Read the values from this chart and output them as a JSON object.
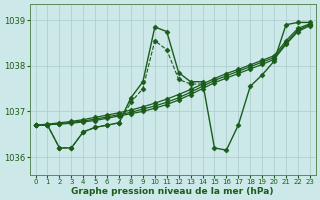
{
  "xlabel": "Graphe pression niveau de la mer (hPa)",
  "xlim": [
    -0.5,
    23.5
  ],
  "ylim": [
    1035.6,
    1039.35
  ],
  "yticks": [
    1036,
    1037,
    1038,
    1039
  ],
  "xticks": [
    0,
    1,
    2,
    3,
    4,
    5,
    6,
    7,
    8,
    9,
    10,
    11,
    12,
    13,
    14,
    15,
    16,
    17,
    18,
    19,
    20,
    21,
    22,
    23
  ],
  "bg_color": "#cce8e8",
  "grid_color": "#aacccc",
  "line_color": "#1a5c1a",
  "lines": [
    {
      "x": [
        0,
        1,
        2,
        3,
        4,
        5,
        6,
        7,
        8,
        9,
        10,
        11,
        12,
        13,
        14,
        15,
        16,
        17,
        18,
        19,
        20,
        21,
        22,
        23
      ],
      "y": [
        1036.7,
        1036.7,
        1036.2,
        1036.2,
        1036.55,
        1036.65,
        1036.7,
        1036.75,
        1037.3,
        1037.65,
        1038.85,
        1038.75,
        1037.85,
        1037.65,
        1037.65,
        1036.2,
        1036.15,
        1036.7,
        1037.55,
        1037.8,
        1038.1,
        1038.9,
        1038.95,
        1038.95
      ],
      "style": "-",
      "marker": "D",
      "markersize": 2.5,
      "linewidth": 1.0
    },
    {
      "x": [
        0,
        1,
        2,
        3,
        4,
        5,
        6,
        7,
        8,
        9,
        10,
        11,
        12,
        13,
        14
      ],
      "y": [
        1036.7,
        1036.7,
        1036.2,
        1036.2,
        1036.55,
        1036.65,
        1036.7,
        1036.75,
        1037.2,
        1037.5,
        1038.55,
        1038.35,
        1037.7,
        1037.6,
        1037.6
      ],
      "style": "--",
      "marker": "D",
      "markersize": 2.5,
      "linewidth": 0.8
    },
    {
      "x": [
        0,
        1,
        2,
        3,
        4,
        5,
        6,
        7,
        8,
        9,
        10,
        11,
        12,
        13,
        14,
        15,
        16,
        17,
        18,
        19,
        20,
        21,
        22,
        23
      ],
      "y": [
        1036.7,
        1036.72,
        1036.75,
        1036.78,
        1036.82,
        1036.87,
        1036.92,
        1036.97,
        1037.03,
        1037.1,
        1037.18,
        1037.27,
        1037.37,
        1037.48,
        1037.6,
        1037.72,
        1037.83,
        1037.92,
        1038.02,
        1038.12,
        1038.22,
        1038.55,
        1038.82,
        1038.92
      ],
      "style": "-",
      "marker": "D",
      "markersize": 2.5,
      "linewidth": 0.9
    },
    {
      "x": [
        0,
        1,
        2,
        3,
        4,
        5,
        6,
        7,
        8,
        9,
        10,
        11,
        12,
        13,
        14,
        15,
        16,
        17,
        18,
        19,
        20,
        21,
        22,
        23
      ],
      "y": [
        1036.7,
        1036.71,
        1036.73,
        1036.76,
        1036.79,
        1036.83,
        1036.88,
        1036.93,
        1036.98,
        1037.05,
        1037.12,
        1037.2,
        1037.3,
        1037.42,
        1037.55,
        1037.68,
        1037.78,
        1037.88,
        1037.98,
        1038.08,
        1038.18,
        1038.5,
        1038.78,
        1038.9
      ],
      "style": "-",
      "marker": "D",
      "markersize": 2.5,
      "linewidth": 0.9
    },
    {
      "x": [
        0,
        1,
        2,
        3,
        4,
        5,
        6,
        7,
        8,
        9,
        10,
        11,
        12,
        13,
        14,
        15,
        16,
        17,
        18,
        19,
        20,
        21,
        22,
        23
      ],
      "y": [
        1036.7,
        1036.71,
        1036.72,
        1036.74,
        1036.77,
        1036.8,
        1036.85,
        1036.9,
        1036.95,
        1037.0,
        1037.07,
        1037.15,
        1037.25,
        1037.37,
        1037.5,
        1037.63,
        1037.73,
        1037.83,
        1037.93,
        1038.03,
        1038.14,
        1038.47,
        1038.75,
        1038.88
      ],
      "style": "-",
      "marker": "D",
      "markersize": 2.5,
      "linewidth": 0.9
    }
  ]
}
